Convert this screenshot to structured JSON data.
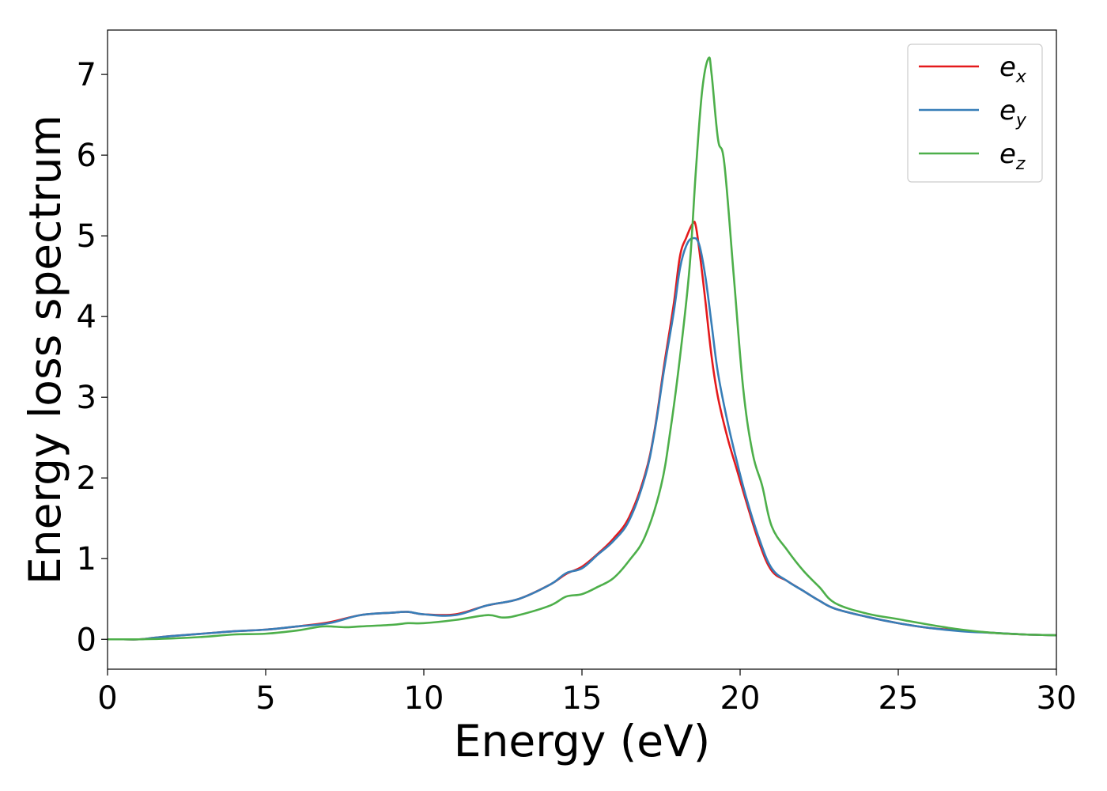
{
  "chart_data": {
    "type": "line",
    "xlabel": "Energy (eV)",
    "ylabel": "Energy loss spectrum",
    "xlim": [
      0,
      30
    ],
    "ylim": [
      -0.37,
      7.55
    ],
    "xticks": [
      0,
      5,
      10,
      15,
      20,
      25,
      30
    ],
    "yticks": [
      0,
      1,
      2,
      3,
      4,
      5,
      6,
      7
    ],
    "grid": false,
    "legend_position": "top-right",
    "series": [
      {
        "name": "e",
        "subscript": "x",
        "color": "#e41a1c",
        "x": [
          0,
          0.5,
          1,
          1.5,
          2,
          3,
          4,
          5,
          6,
          7,
          8,
          9,
          9.5,
          10,
          11,
          12,
          13,
          14,
          14.5,
          15,
          15.5,
          16,
          16.5,
          17,
          17.3,
          17.6,
          17.9,
          18.1,
          18.3,
          18.5,
          18.6,
          18.75,
          18.9,
          19.1,
          19.3,
          19.6,
          19.9,
          20.2,
          20.6,
          21.0,
          21.5,
          22,
          22.5,
          23,
          24,
          25,
          26,
          27,
          28,
          29,
          30
        ],
        "y": [
          0.0,
          0.0,
          0.0,
          0.02,
          0.04,
          0.07,
          0.1,
          0.12,
          0.16,
          0.21,
          0.3,
          0.33,
          0.34,
          0.31,
          0.31,
          0.42,
          0.5,
          0.68,
          0.81,
          0.9,
          1.06,
          1.25,
          1.52,
          2.05,
          2.6,
          3.4,
          4.15,
          4.75,
          4.98,
          5.15,
          5.12,
          4.7,
          4.2,
          3.5,
          3.0,
          2.5,
          2.1,
          1.7,
          1.2,
          0.85,
          0.72,
          0.6,
          0.48,
          0.38,
          0.28,
          0.2,
          0.14,
          0.11,
          0.08,
          0.06,
          0.05
        ]
      },
      {
        "name": "e",
        "subscript": "y",
        "color": "#377eb8",
        "x": [
          0,
          0.5,
          1,
          1.5,
          2,
          3,
          4,
          5,
          6,
          7,
          8,
          9,
          9.5,
          10,
          11,
          12,
          13,
          14,
          14.5,
          15,
          15.5,
          16,
          16.5,
          17,
          17.3,
          17.6,
          17.9,
          18.1,
          18.3,
          18.5,
          18.7,
          18.9,
          19.1,
          19.3,
          19.6,
          19.9,
          20.2,
          20.6,
          21.0,
          21.5,
          22,
          22.5,
          23,
          24,
          25,
          26,
          27,
          28,
          29,
          30
        ],
        "y": [
          0.0,
          0.0,
          0.0,
          0.02,
          0.04,
          0.07,
          0.1,
          0.12,
          0.16,
          0.2,
          0.3,
          0.33,
          0.34,
          0.31,
          0.3,
          0.42,
          0.5,
          0.68,
          0.82,
          0.88,
          1.05,
          1.22,
          1.48,
          2.02,
          2.58,
          3.35,
          4.05,
          4.6,
          4.88,
          4.97,
          4.9,
          4.5,
          3.9,
          3.3,
          2.7,
          2.2,
          1.75,
          1.25,
          0.88,
          0.72,
          0.6,
          0.48,
          0.38,
          0.28,
          0.2,
          0.14,
          0.1,
          0.08,
          0.06,
          0.05
        ]
      },
      {
        "name": "e",
        "subscript": "z",
        "color": "#4daf4a",
        "x": [
          0,
          0.5,
          1,
          2,
          3,
          4,
          5,
          6,
          6.8,
          7.5,
          8,
          9,
          9.5,
          10,
          11,
          12,
          12.5,
          13,
          14,
          14.5,
          15,
          15.5,
          16,
          16.5,
          17,
          17.5,
          17.8,
          18.1,
          18.4,
          18.6,
          18.8,
          19.0,
          19.1,
          19.3,
          19.5,
          19.8,
          20.1,
          20.4,
          20.7,
          21.0,
          21.5,
          22,
          22.5,
          23,
          24,
          25,
          26,
          27,
          28,
          29,
          30
        ],
        "y": [
          0.0,
          0.0,
          0.0,
          0.01,
          0.03,
          0.06,
          0.07,
          0.11,
          0.16,
          0.15,
          0.16,
          0.18,
          0.2,
          0.2,
          0.24,
          0.3,
          0.27,
          0.3,
          0.42,
          0.53,
          0.56,
          0.65,
          0.76,
          0.98,
          1.28,
          1.9,
          2.6,
          3.5,
          4.6,
          5.8,
          6.8,
          7.2,
          7.0,
          6.2,
          5.9,
          4.5,
          3.1,
          2.3,
          1.9,
          1.4,
          1.1,
          0.85,
          0.65,
          0.45,
          0.32,
          0.25,
          0.18,
          0.12,
          0.08,
          0.06,
          0.05
        ]
      }
    ]
  }
}
